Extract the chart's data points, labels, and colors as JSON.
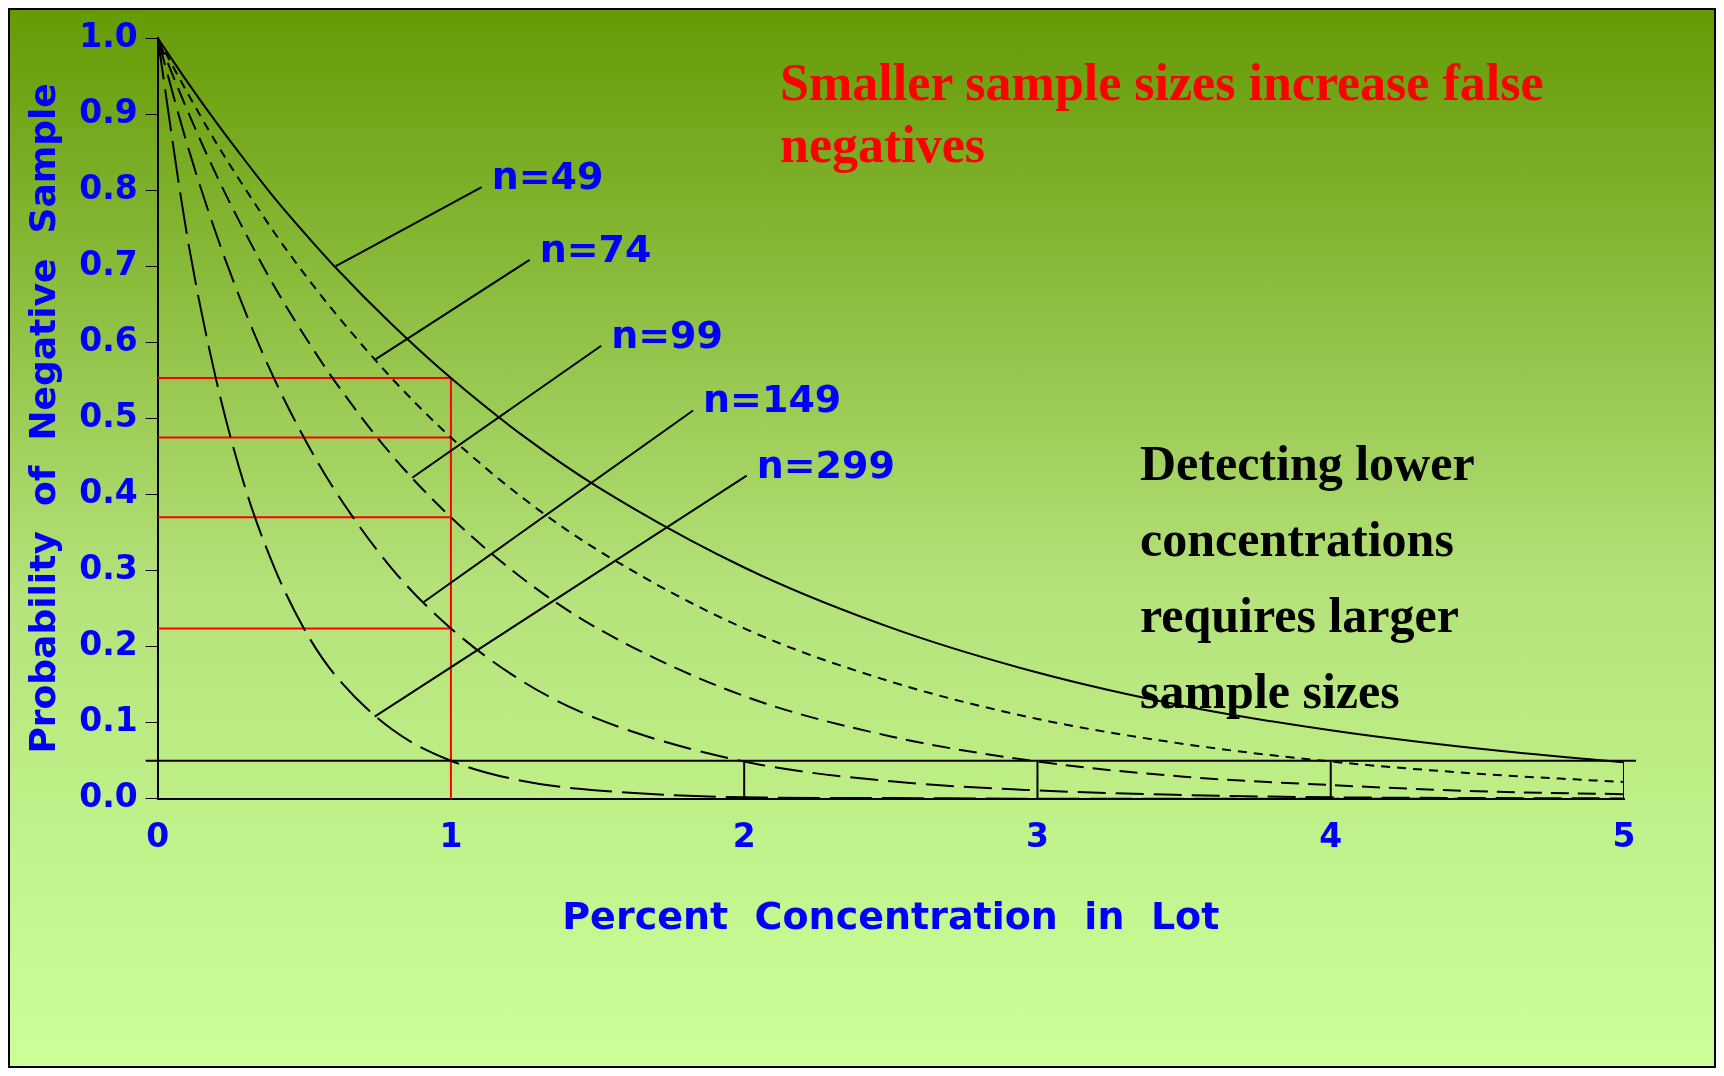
{
  "chart_data": {
    "type": "line",
    "xlabel": "Percent  Concentration  in  Lot",
    "ylabel": "Probability  of  Negative  Sample",
    "x": [
      0,
      0.1,
      0.2,
      0.3,
      0.4,
      0.5,
      0.6,
      0.8,
      1,
      1.25,
      1.5,
      2,
      2.5,
      3,
      3.5,
      4,
      4.5,
      5
    ],
    "series": [
      {
        "color": "#000000",
        "line_style": "solid",
        "values": [
          1,
          0.943,
          0.889,
          0.838,
          0.789,
          0.744,
          0.701,
          0.623,
          0.553,
          0.476,
          0.41,
          0.304,
          0.225,
          0.166,
          0.122,
          0.09,
          0.066,
          0.048
        ]
      },
      {
        "color": "#000000",
        "line_style": "dashed",
        "values": [
          1,
          0.929,
          0.862,
          0.801,
          0.743,
          0.69,
          0.641,
          0.552,
          0.475,
          0.394,
          0.327,
          0.224,
          0.154,
          0.105,
          0.072,
          0.049,
          0.033,
          0.022
        ]
      },
      {
        "color": "#000000",
        "line_style": "dashed",
        "values": [
          1,
          0.906,
          0.82,
          0.743,
          0.672,
          0.609,
          0.551,
          0.451,
          0.37,
          0.288,
          0.224,
          0.135,
          0.082,
          0.049,
          0.029,
          0.018,
          0.01,
          0.006
        ]
      },
      {
        "color": "#000000",
        "line_style": "dashed",
        "values": [
          1,
          0.861,
          0.742,
          0.639,
          0.55,
          0.474,
          0.408,
          0.302,
          0.224,
          0.153,
          0.105,
          0.049,
          0.023,
          0.011,
          0.005,
          0.002,
          0.001,
          0.0005
        ]
      },
      {
        "color": "#000000",
        "line_style": "dashed",
        "values": [
          1,
          0.741,
          0.55,
          0.407,
          0.302,
          0.223,
          0.165,
          0.091,
          0.05,
          0.023,
          0.011,
          0.002,
          0.001,
          0,
          0,
          0,
          0,
          null
        ]
      },
      {
        "color": "#ff0000",
        "line_style": "solid",
        "x": [
          0,
          1,
          1
        ],
        "values": [
          0.553,
          0.553,
          0
        ]
      },
      {
        "color": "#ff0000",
        "line_style": "solid",
        "x": [
          0,
          1
        ],
        "values": [
          0.475,
          0.475
        ]
      },
      {
        "color": "#ff0000",
        "line_style": "solid",
        "x": [
          0,
          1
        ],
        "values": [
          0.37,
          0.37
        ]
      },
      {
        "color": "#ff0000",
        "line_style": "solid",
        "x": [
          0,
          1
        ],
        "values": [
          0.224,
          0.224
        ]
      },
      {
        "color": "#000000",
        "line_style": "solid",
        "x": [
          2,
          2
        ],
        "values": [
          0,
          0.049
        ]
      },
      {
        "color": "#000000",
        "line_style": "solid",
        "x": [
          3,
          3
        ],
        "values": [
          0,
          0.049
        ]
      },
      {
        "color": "#000000",
        "line_style": "solid",
        "x": [
          4,
          4
        ],
        "values": [
          0,
          0.049
        ]
      },
      {
        "color": "#000000",
        "line_style": "solid",
        "x": [
          5,
          5
        ],
        "values": [
          0,
          0.048
        ]
      }
    ],
    "ref_lines": [
      {
        "axis": "y",
        "value": 0.05,
        "color": "#000000"
      }
    ],
    "annotations": [
      "Smaller sample sizes increase false negatives",
      "Detecting lower concentrations requires larger sample sizes",
      {
        "text": "n=49",
        "x": 0.607,
        "y": 0.7
      },
      {
        "text": "n=74",
        "x": 0.74,
        "y": 0.577
      },
      {
        "text": "n=99",
        "x": 0.868,
        "y": 0.422
      },
      {
        "text": "n=149",
        "x": 0.905,
        "y": 0.258
      },
      {
        "text": "n=299",
        "x": 0.74,
        "y": 0.108
      }
    ],
    "xlim": [
      0,
      5
    ],
    "xticks": [
      0,
      1,
      2,
      3,
      4,
      5
    ],
    "ylim": [
      0,
      1
    ],
    "yticks": [
      {
        "value": 0,
        "label": "0.0"
      },
      {
        "value": 0.1,
        "label": "0.1"
      },
      {
        "value": 0.2,
        "label": "0.2"
      },
      {
        "value": 0.3,
        "label": "0.3"
      },
      {
        "value": 0.4,
        "label": "0.4"
      },
      {
        "value": 0.5,
        "label": "0.5"
      },
      {
        "value": 0.6,
        "label": "0.6"
      },
      {
        "value": 0.7,
        "label": "0.7"
      },
      {
        "value": 0.8,
        "label": "0.8"
      },
      {
        "value": 0.9,
        "label": "0.9"
      },
      {
        "value": 1,
        "label": "1.0"
      }
    ],
    "grid": false,
    "legend": false,
    "marker": "none"
  }
}
